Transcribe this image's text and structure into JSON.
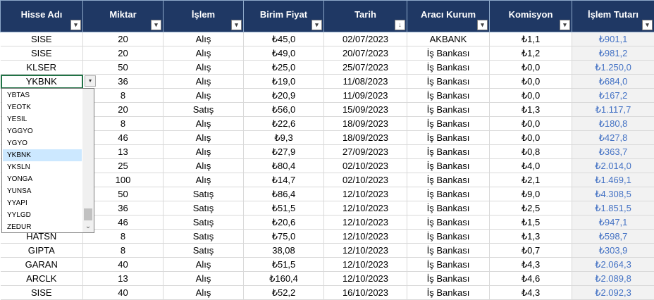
{
  "headers": [
    {
      "label": "Hisse Adı",
      "filter": "▾"
    },
    {
      "label": "Miktar",
      "filter": "▾"
    },
    {
      "label": "İşlem",
      "filter": "▾"
    },
    {
      "label": "Birim Fiyat",
      "filter": "▾"
    },
    {
      "label": "Tarih",
      "filter": "↓"
    },
    {
      "label": "Aracı Kurum",
      "filter": "▾"
    },
    {
      "label": "Komisyon",
      "filter": "▾"
    },
    {
      "label": "İşlem Tutarı",
      "filter": "▾"
    }
  ],
  "rows": [
    [
      "SISE",
      "20",
      "Alış",
      "₺45,0",
      "02/07/2023",
      "AKBANK",
      "₺1,1",
      "₺901,1"
    ],
    [
      "SISE",
      "20",
      "Alış",
      "₺49,0",
      "20/07/2023",
      "İş Bankası",
      "₺1,2",
      "₺981,2"
    ],
    [
      "KLSER",
      "50",
      "Alış",
      "₺25,0",
      "25/07/2023",
      "İş Bankası",
      "₺0,0",
      "₺1.250,0"
    ],
    [
      "YKBNK",
      "36",
      "Alış",
      "₺19,0",
      "11/08/2023",
      "İş Bankası",
      "₺0,0",
      "₺684,0"
    ],
    [
      "",
      "8",
      "Alış",
      "₺20,9",
      "11/09/2023",
      "İş Bankası",
      "₺0,0",
      "₺167,2"
    ],
    [
      "",
      "20",
      "Satış",
      "₺56,0",
      "15/09/2023",
      "İş Bankası",
      "₺1,3",
      "₺1.117,7"
    ],
    [
      "",
      "8",
      "Alış",
      "₺22,6",
      "18/09/2023",
      "İş Bankası",
      "₺0,0",
      "₺180,8"
    ],
    [
      "",
      "46",
      "Alış",
      "₺9,3",
      "18/09/2023",
      "İş Bankası",
      "₺0,0",
      "₺427,8"
    ],
    [
      "",
      "13",
      "Alış",
      "₺27,9",
      "27/09/2023",
      "İş Bankası",
      "₺0,8",
      "₺363,7"
    ],
    [
      "",
      "25",
      "Alış",
      "₺80,4",
      "02/10/2023",
      "İş Bankası",
      "₺4,0",
      "₺2.014,0"
    ],
    [
      "",
      "100",
      "Alış",
      "₺14,7",
      "02/10/2023",
      "İş Bankası",
      "₺2,1",
      "₺1.469,1"
    ],
    [
      "",
      "50",
      "Satış",
      "₺86,4",
      "12/10/2023",
      "İş Bankası",
      "₺9,0",
      "₺4.308,5"
    ],
    [
      "",
      "36",
      "Satış",
      "₺51,5",
      "12/10/2023",
      "İş Bankası",
      "₺2,5",
      "₺1.851,5"
    ],
    [
      "",
      "46",
      "Satış",
      "₺20,6",
      "12/10/2023",
      "İş Bankası",
      "₺1,5",
      "₺947,1"
    ],
    [
      "HATSN",
      "8",
      "Satış",
      "₺75,0",
      "12/10/2023",
      "İş Bankası",
      "₺1,3",
      "₺598,7"
    ],
    [
      "GIPTA",
      "8",
      "Satış",
      "38,08",
      "12/10/2023",
      "İş Bankası",
      "₺0,7",
      "₺303,9"
    ],
    [
      "GARAN",
      "40",
      "Alış",
      "₺51,5",
      "12/10/2023",
      "İş Bankası",
      "₺4,3",
      "₺2.064,3"
    ],
    [
      "ARCLK",
      "13",
      "Alış",
      "₺160,4",
      "12/10/2023",
      "İş Bankası",
      "₺4,6",
      "₺2.089,8"
    ],
    [
      "SISE",
      "40",
      "Alış",
      "₺52,2",
      "16/10/2023",
      "İş Bankası",
      "₺4,3",
      "₺2.092,3"
    ]
  ],
  "dropdown": {
    "arrow": "▾",
    "items": [
      "YBTAS",
      "YEOTK",
      "YESIL",
      "YGGYO",
      "YGYO",
      "YKBNK",
      "YKSLN",
      "YONGA",
      "YUNSA",
      "YYAPI",
      "YYLGD",
      "ZEDUR"
    ],
    "selected_index": 5,
    "scroll_down": "⌄"
  },
  "colors": {
    "header_bg": "#1f3864",
    "total_text": "#4472c4",
    "total_bg": "#f2f2f2",
    "selection": "#cce8ff"
  }
}
